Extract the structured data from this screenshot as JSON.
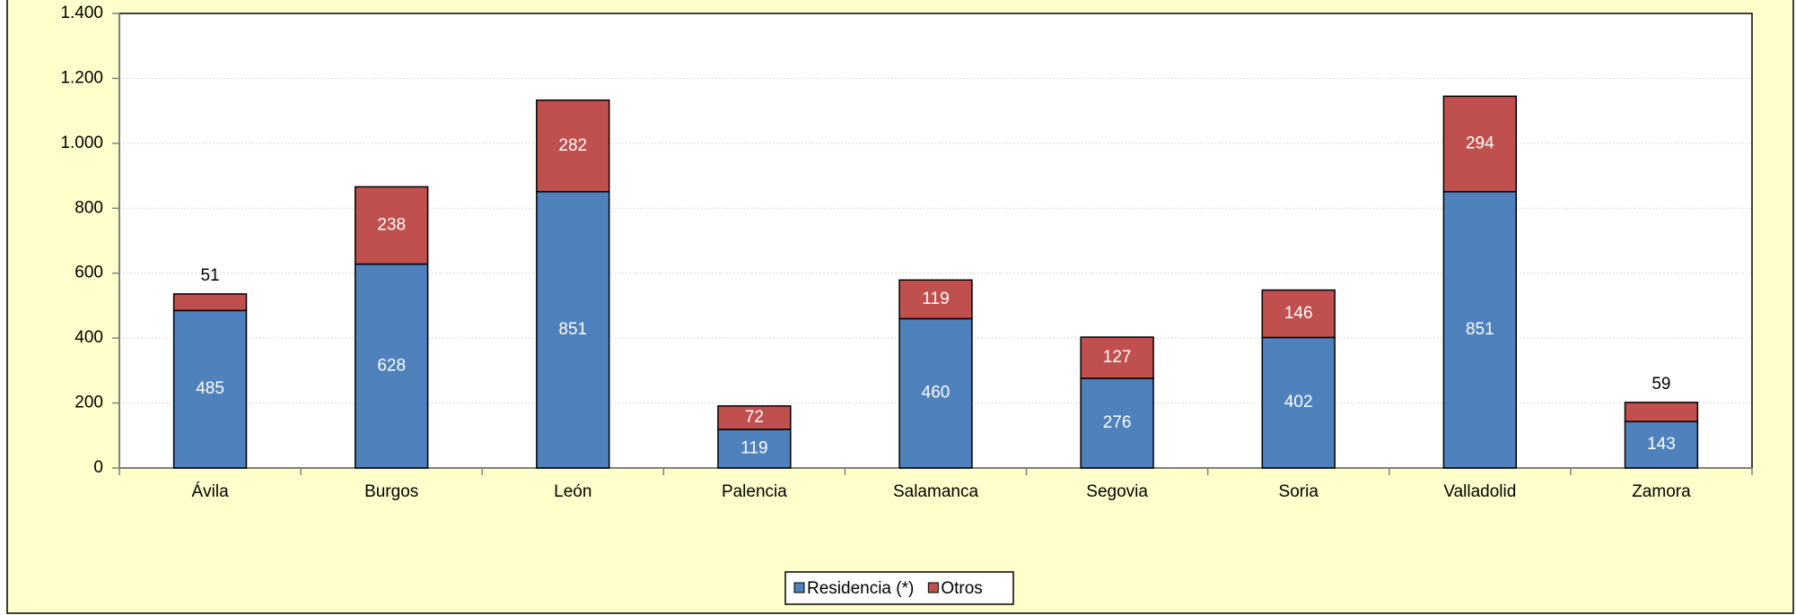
{
  "chart_data": {
    "type": "stacked_bar",
    "categories": [
      "Ávila",
      "Burgos",
      "León",
      "Palencia",
      "Salamanca",
      "Segovia",
      "Soria",
      "Valladolid",
      "Zamora"
    ],
    "series": [
      {
        "name": "Residencia (*)",
        "color": "#4f81bd",
        "values": [
          485,
          628,
          851,
          119,
          460,
          276,
          402,
          851,
          143
        ]
      },
      {
        "name": "Otros",
        "color": "#c0504d",
        "values": [
          51,
          238,
          282,
          72,
          119,
          127,
          146,
          294,
          59
        ]
      }
    ],
    "ylim": [
      0,
      1400
    ],
    "yticks": [
      0,
      200,
      400,
      600,
      800,
      {
        "value": 1000,
        "label": "1.000"
      },
      {
        "value": 1200,
        "label": "1.200"
      },
      {
        "value": 1400,
        "label": "1.400"
      }
    ],
    "grid": true,
    "legend": "bottom"
  }
}
